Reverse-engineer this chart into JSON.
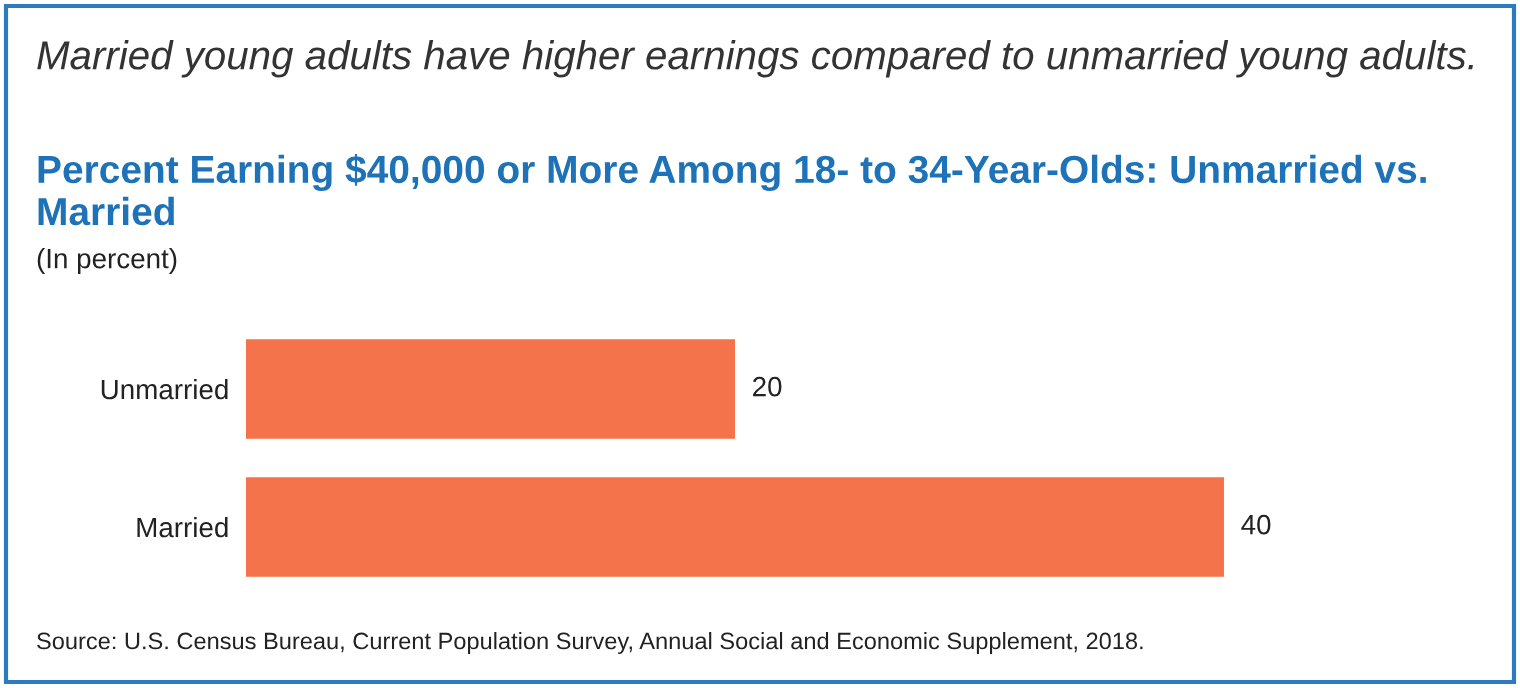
{
  "chart_data": {
    "type": "bar",
    "orientation": "horizontal",
    "title": "Married young adults have higher earnings compared to unmarried young adults.",
    "subtitle": "Percent Earning $40,000 or More Among 18- to 34-Year-Olds: Unmarried vs. Married",
    "categories": [
      "Unmarried",
      "Married"
    ],
    "values": [
      20,
      40
    ],
    "color": "#f4734a",
    "data_labels": true,
    "grid": false,
    "annotations": [
      "(In percent)",
      "Source: U.S. Census Bureau, Current Population Survey, Annual Social and Economic Supplement, 2018."
    ]
  }
}
